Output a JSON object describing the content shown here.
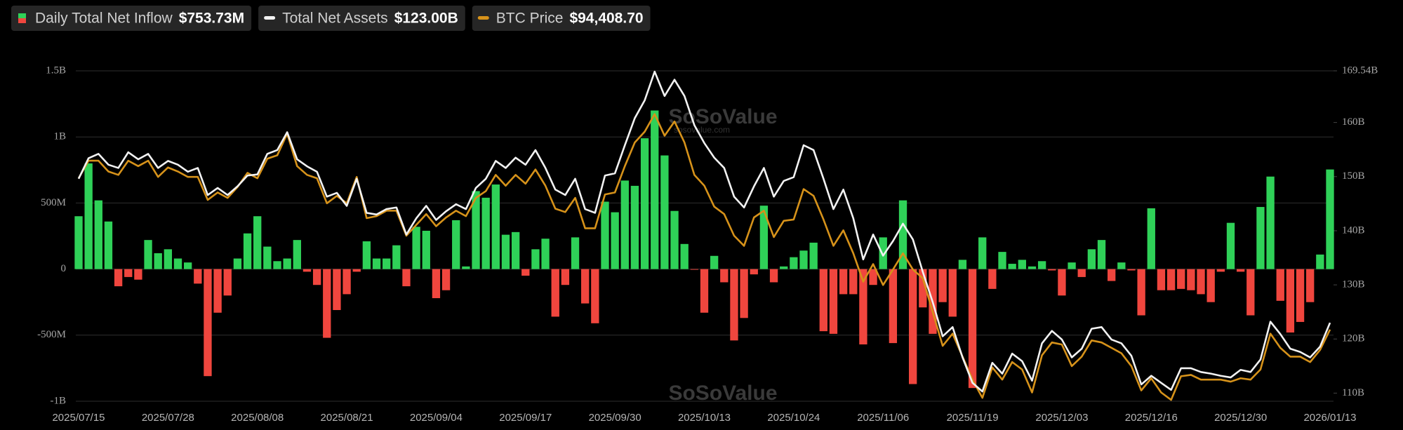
{
  "chart_data": {
    "type": "bar-line",
    "watermark": "SoSoValue",
    "watermark_url": "sosovalue.com",
    "categories": [
      "2025/07/15",
      null,
      null,
      null,
      null,
      null,
      null,
      null,
      null,
      "2025/07/28",
      null,
      null,
      null,
      null,
      null,
      null,
      null,
      null,
      "2025/08/08",
      null,
      null,
      null,
      null,
      null,
      null,
      null,
      null,
      "2025/08/21",
      null,
      null,
      null,
      null,
      null,
      null,
      null,
      null,
      "2025/09/04",
      null,
      null,
      null,
      null,
      null,
      null,
      null,
      null,
      "2025/09/17",
      null,
      null,
      null,
      null,
      null,
      null,
      null,
      null,
      "2025/09/30",
      null,
      null,
      null,
      null,
      null,
      null,
      null,
      null,
      "2025/10/13",
      null,
      null,
      null,
      null,
      null,
      null,
      null,
      null,
      "2025/10/24",
      null,
      null,
      null,
      null,
      null,
      null,
      null,
      null,
      "2025/11/06",
      null,
      null,
      null,
      null,
      null,
      null,
      null,
      null,
      "2025/11/19",
      null,
      null,
      null,
      null,
      null,
      null,
      null,
      null,
      "2025/12/03",
      null,
      null,
      null,
      null,
      null,
      null,
      null,
      null,
      "2025/12/16",
      null,
      null,
      null,
      null,
      null,
      null,
      null,
      null,
      "2025/12/30",
      null,
      null,
      null,
      null,
      null,
      null,
      null,
      null,
      "2026/01/13"
    ],
    "ylim": [
      -1000000000.0,
      1500000000.0
    ],
    "yticks": [
      {
        "value": -1000000000.0,
        "label": "-1B"
      },
      {
        "value": -500000000.0,
        "label": "-500M"
      },
      0,
      {
        "value": 500000000.0,
        "label": "500M"
      },
      {
        "value": 1000000000.0,
        "label": "1B"
      },
      {
        "value": 1500000000.0,
        "label": "1.5B"
      }
    ],
    "y2lim": [
      108500000000.0,
      169540000000.0
    ],
    "y2ticks": [
      {
        "value": 110000000000.0,
        "label": "110B"
      },
      {
        "value": 120000000000.0,
        "label": "120B"
      },
      {
        "value": 130000000000.0,
        "label": "130B"
      },
      {
        "value": 140000000000.0,
        "label": "140B"
      },
      {
        "value": 150000000000.0,
        "label": "150B"
      },
      {
        "value": 160000000000.0,
        "label": "160B"
      },
      {
        "value": 169540000000.0,
        "label": "169.54B"
      }
    ],
    "y3lim": [
      83800,
      132700
    ],
    "grid": true,
    "series": [
      {
        "name": "Daily Total Net Inflow",
        "latest": "$753.73M",
        "type": "bar",
        "color": "#2fd158",
        "negative_color": "#f0463e",
        "values": [
          400000000.0,
          800000000.0,
          520000000.0,
          360000000.0,
          -130000000.0,
          -60000000.0,
          -80000000.0,
          220000000.0,
          120000000.0,
          150000000.0,
          80000000.0,
          50000000.0,
          -110000000.0,
          -810000000.0,
          -330000000.0,
          -200000000.0,
          80000000.0,
          270000000.0,
          400000000.0,
          170000000.0,
          60000000.0,
          80000000.0,
          220000000.0,
          -20000000.0,
          -120000000.0,
          -520000000.0,
          -310000000.0,
          -190000000.0,
          -20000000.0,
          210000000.0,
          80000000.0,
          80000000.0,
          180000000.0,
          -130000000.0,
          320000000.0,
          290000000.0,
          -220000000.0,
          -160000000.0,
          370000000.0,
          20000000.0,
          590000000.0,
          540000000.0,
          640000000.0,
          260000000.0,
          280000000.0,
          -50000000.0,
          150000000.0,
          230000000.0,
          -360000000.0,
          -120000000.0,
          240000000.0,
          -260000000.0,
          -410000000.0,
          510000000.0,
          430000000.0,
          670000000.0,
          630000000.0,
          990000000.0,
          1200000000.0,
          860000000.0,
          440000000.0,
          190000000.0,
          -5000000.0,
          -330000000.0,
          100000000.0,
          -100000000.0,
          -540000000.0,
          -370000000.0,
          -40000000.0,
          480000000.0,
          -100000000.0,
          20000000.0,
          90000000.0,
          140000000.0,
          200000000.0,
          -470000000.0,
          -490000000.0,
          -190000000.0,
          -190000000.0,
          -570000000.0,
          -120000000.0,
          240000000.0,
          -560000000.0,
          520000000.0,
          -870000000.0,
          -290000000.0,
          -490000000.0,
          -250000000.0,
          -360000000.0,
          70000000.0,
          -900000000.0,
          240000000.0,
          -150000000.0,
          130000000.0,
          40000000.0,
          70000000.0,
          20000000.0,
          60000000.0,
          -10000000.0,
          -200000000.0,
          50000000.0,
          -60000000.0,
          150000000.0,
          220000000.0,
          -90000000.0,
          50000000.0,
          -10000000.0,
          -350000000.0,
          460000000.0,
          -160000000.0,
          -160000000.0,
          -150000000.0,
          -160000000.0,
          -190000000.0,
          -250000000.0,
          -20000000.0,
          350000000.0,
          -20000000.0,
          -350000000.0,
          470000000.0,
          700000000.0,
          -240000000.0,
          -480000000.0,
          -400000000.0,
          -250000000.0,
          110000000.0,
          753730000.0
        ]
      },
      {
        "name": "Total Net Assets",
        "latest": "$123.00B",
        "type": "line",
        "axis": "y2",
        "color": "#f2f2f2",
        "values": [
          149600000000.0,
          153400000000.0,
          154200000000.0,
          152200000000.0,
          151600000000.0,
          154500000000.0,
          153200000000.0,
          154200000000.0,
          151600000000.0,
          152900000000.0,
          152200000000.0,
          150900000000.0,
          151600000000.0,
          146600000000.0,
          147900000000.0,
          146600000000.0,
          148200000000.0,
          150200000000.0,
          150400000000.0,
          154200000000.0,
          154900000000.0,
          158200000000.0,
          153200000000.0,
          151900000000.0,
          150900000000.0,
          146300000000.0,
          147000000000.0,
          144600000000.0,
          149600000000.0,
          143300000000.0,
          143000000000.0,
          144000000000.0,
          144300000000.0,
          139300000000.0,
          142300000000.0,
          144600000000.0,
          142000000000.0,
          143600000000.0,
          144900000000.0,
          144000000000.0,
          147900000000.0,
          149600000000.0,
          152900000000.0,
          151600000000.0,
          153500000000.0,
          152200000000.0,
          154900000000.0,
          151600000000.0,
          147600000000.0,
          146600000000.0,
          149600000000.0,
          144000000000.0,
          143300000000.0,
          150200000000.0,
          150600000000.0,
          155800000000.0,
          160800000000.0,
          164100000000.0,
          169400000000.0,
          164900000000.0,
          167900000000.0,
          164900000000.0,
          159500000000.0,
          156200000000.0,
          153500000000.0,
          151600000000.0,
          146300000000.0,
          144300000000.0,
          148200000000.0,
          151600000000.0,
          146300000000.0,
          149200000000.0,
          149900000000.0,
          155800000000.0,
          154900000000.0,
          149600000000.0,
          144000000000.0,
          147600000000.0,
          142300000000.0,
          134700000000.0,
          139300000000.0,
          135400000000.0,
          138100000000.0,
          141300000000.0,
          138400000000.0,
          132400000000.0,
          126800000000.0,
          120500000000.0,
          122200000000.0,
          116600000000.0,
          111900000000.0,
          110300000000.0,
          115600000000.0,
          113600000000.0,
          117300000000.0,
          115900000000.0,
          112300000000.0,
          119200000000.0,
          121500000000.0,
          119900000000.0,
          116600000000.0,
          118200000000.0,
          121900000000.0,
          122200000000.0,
          119900000000.0,
          119200000000.0,
          116900000000.0,
          111600000000.0,
          113200000000.0,
          111900000000.0,
          110600000000.0,
          114600000000.0,
          114600000000.0,
          113900000000.0,
          113600000000.0,
          113200000000.0,
          112900000000.0,
          114300000000.0,
          113900000000.0,
          116200000000.0,
          123200000000.0,
          120900000000.0,
          118200000000.0,
          117600000000.0,
          116600000000.0,
          118600000000.0,
          123000000000.0
        ]
      },
      {
        "name": "BTC Price",
        "latest": "$94,408.70",
        "type": "line",
        "axis": "y3",
        "color": "#d6921a",
        "values": [
          116800,
          119400,
          119400,
          117800,
          117300,
          119400,
          118600,
          119400,
          117000,
          118400,
          117800,
          117000,
          117000,
          113600,
          114700,
          113900,
          115500,
          117600,
          116800,
          119700,
          120200,
          123400,
          118600,
          117300,
          116800,
          113100,
          114200,
          113100,
          117000,
          110900,
          111200,
          112000,
          112000,
          108300,
          109900,
          111500,
          109700,
          111000,
          112000,
          111200,
          113900,
          114900,
          117300,
          115700,
          117300,
          116000,
          118100,
          115700,
          112300,
          111800,
          113900,
          109400,
          109400,
          114400,
          114700,
          118600,
          122100,
          123700,
          126300,
          123100,
          125200,
          122100,
          117300,
          115700,
          112600,
          111500,
          108300,
          106800,
          111000,
          112000,
          108100,
          110500,
          110700,
          115200,
          114200,
          110700,
          106800,
          109100,
          105700,
          101500,
          104100,
          101000,
          103300,
          105700,
          103300,
          102000,
          97000,
          92000,
          93800,
          90400,
          87000,
          84300,
          88800,
          87000,
          89600,
          88500,
          85100,
          90600,
          92500,
          92200,
          89000,
          90400,
          92800,
          92500,
          91700,
          90900,
          89000,
          85400,
          87200,
          85100,
          84000,
          87500,
          87700,
          87000,
          87000,
          87000,
          86700,
          87200,
          87000,
          88500,
          93800,
          91700,
          90400,
          90400,
          89600,
          91400,
          94408.7
        ]
      }
    ]
  }
}
